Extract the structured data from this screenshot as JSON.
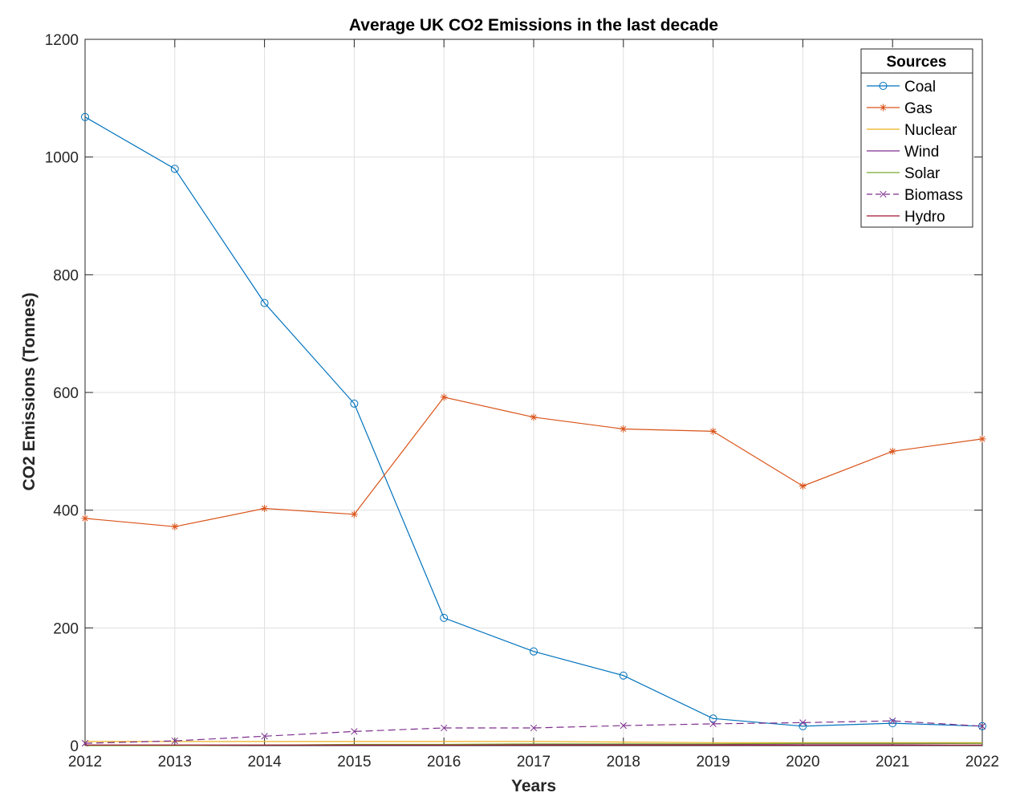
{
  "chart_data": {
    "type": "line",
    "title": "Average UK CO2 Emissions in the last decade",
    "xlabel": "Years",
    "ylabel": "CO2 Emissions (Tonnes)",
    "xlim": [
      2012,
      2022
    ],
    "ylim": [
      0,
      1200
    ],
    "x": [
      2012,
      2013,
      2014,
      2015,
      2016,
      2017,
      2018,
      2019,
      2020,
      2021,
      2022
    ],
    "x_ticks": [
      "2012",
      "2013",
      "2014",
      "2015",
      "2016",
      "2017",
      "2018",
      "2019",
      "2020",
      "2021",
      "2022"
    ],
    "y_ticks": [
      "0",
      "200",
      "400",
      "600",
      "800",
      "1000",
      "1200"
    ],
    "y_tick_values": [
      0,
      200,
      400,
      600,
      800,
      1000,
      1200
    ],
    "grid": true,
    "legend": {
      "title": "Sources",
      "placement": "top-right"
    },
    "series": [
      {
        "name": "Coal",
        "color": "#0072BD",
        "marker": "circle",
        "dash": "solid",
        "values": [
          1068,
          980,
          752,
          581,
          217,
          160,
          119,
          46,
          33,
          38,
          33
        ]
      },
      {
        "name": "Gas",
        "color": "#D95319",
        "marker": "asterisk",
        "dash": "solid",
        "values": [
          386,
          372,
          403,
          393,
          592,
          558,
          538,
          534,
          441,
          500,
          521
        ]
      },
      {
        "name": "Nuclear",
        "color": "#EDB120",
        "marker": "none",
        "dash": "solid",
        "values": [
          7,
          7,
          7,
          7,
          7,
          7,
          6,
          5,
          5,
          5,
          5
        ]
      },
      {
        "name": "Wind",
        "color": "#7E2F8E",
        "marker": "none",
        "dash": "solid",
        "values": [
          1,
          1,
          1,
          1,
          1,
          2,
          2,
          2,
          3,
          3,
          4
        ]
      },
      {
        "name": "Solar",
        "color": "#77AC30",
        "marker": "none",
        "dash": "solid",
        "values": [
          0,
          0,
          1,
          2,
          2,
          3,
          3,
          3,
          4,
          4,
          4
        ]
      },
      {
        "name": "Biomass",
        "color": "#7E2F8E",
        "marker": "x",
        "dash": "dashed",
        "values": [
          4,
          8,
          16,
          24,
          30,
          30,
          34,
          37,
          39,
          42,
          33
        ]
      },
      {
        "name": "Hydro",
        "color": "#A2142F",
        "marker": "none",
        "dash": "solid",
        "values": [
          1,
          1,
          1,
          1,
          1,
          1,
          1,
          1,
          1,
          1,
          1
        ]
      }
    ]
  }
}
